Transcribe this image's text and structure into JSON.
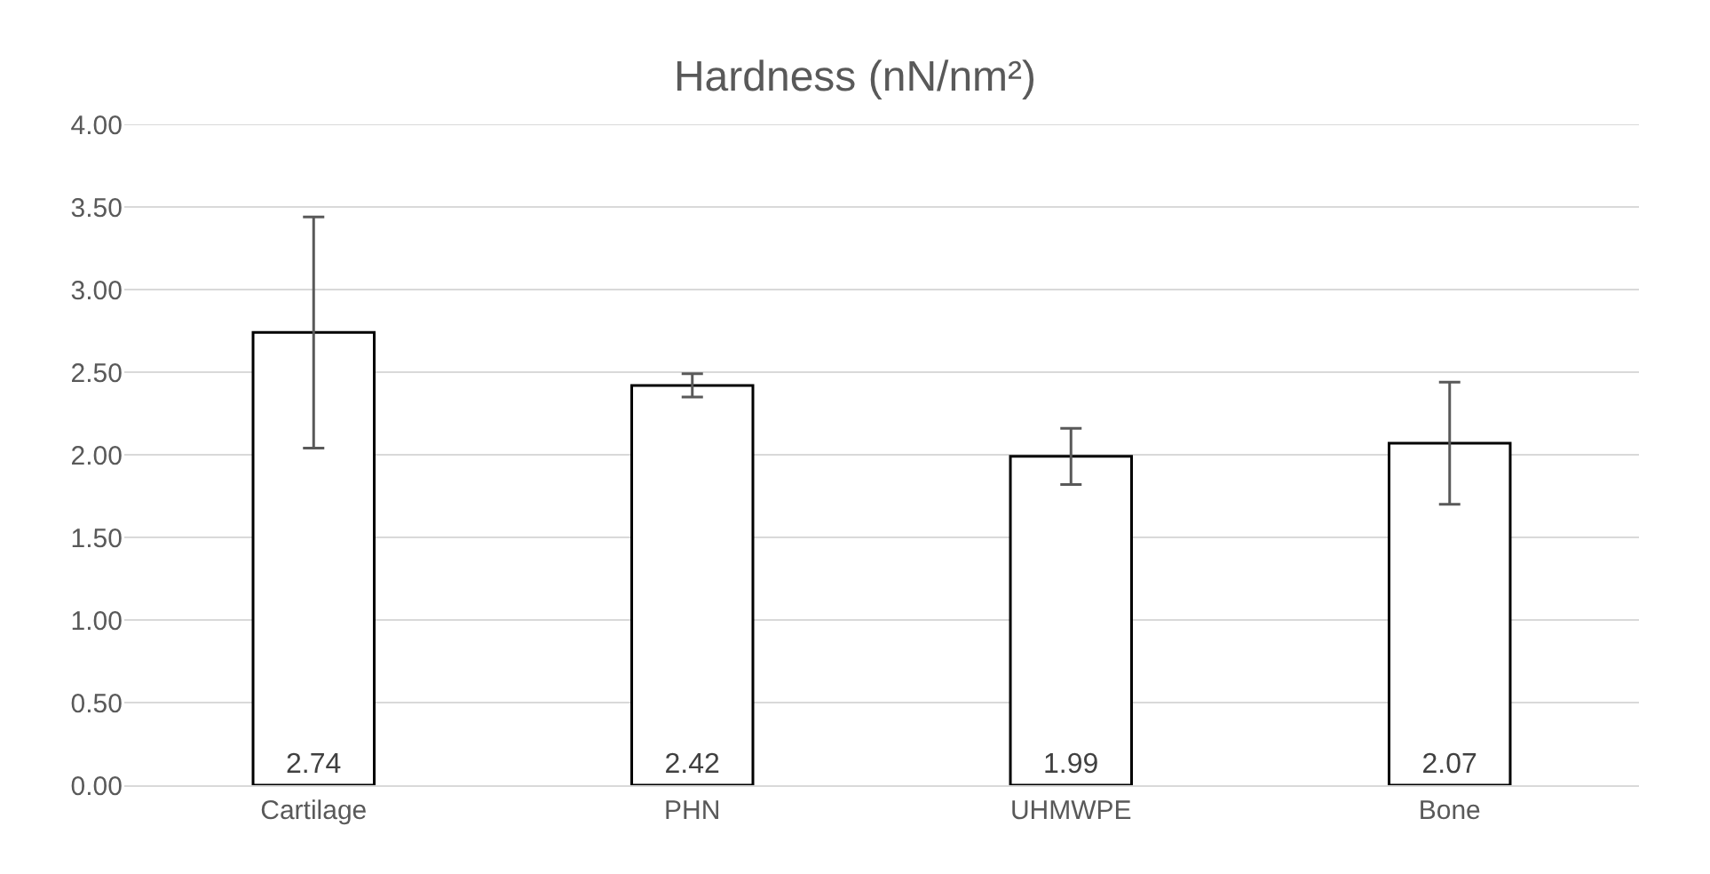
{
  "chart_data": {
    "type": "bar",
    "title": "Hardness (nN/nm²)",
    "categories": [
      "Cartilage",
      "PHN",
      "UHMWPE",
      "Bone"
    ],
    "values": [
      2.74,
      2.42,
      1.99,
      2.07
    ],
    "errors": [
      0.7,
      0.07,
      0.17,
      0.37
    ],
    "color": "#ffffff",
    "ylim": [
      0,
      4
    ],
    "yticks": [
      {
        "value": 0,
        "label": "0.00"
      },
      {
        "value": 0.5,
        "label": "0.50"
      },
      {
        "value": 1,
        "label": "1.00"
      },
      {
        "value": 1.5,
        "label": "1.50"
      },
      {
        "value": 2,
        "label": "2.00"
      },
      {
        "value": 2.5,
        "label": "2.50"
      },
      {
        "value": 3,
        "label": "3.00"
      },
      {
        "value": 3.5,
        "label": "3.50"
      },
      {
        "value": 4,
        "label": "4.00"
      }
    ],
    "grid": "y",
    "data_labels": true
  }
}
